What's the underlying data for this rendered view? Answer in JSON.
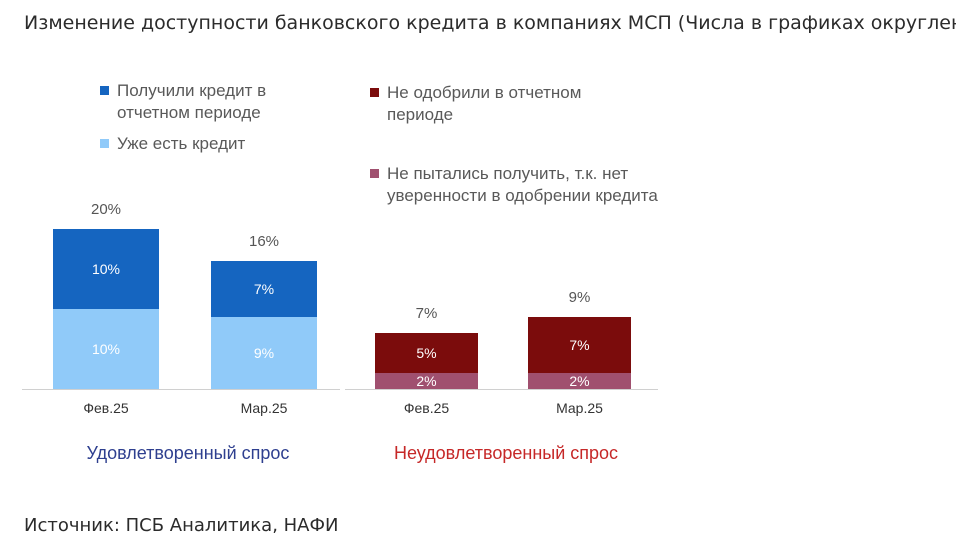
{
  "title": "Изменение доступности банковского кредита в компаниях МСП (Числа в графиках округлены)",
  "source": "Источник: ПСБ Аналитика, НАФИ",
  "colors": {
    "got_credit": "#1565c0",
    "has_credit": "#90caf9",
    "not_approved": "#7b0c0c",
    "not_tried": "#a0506f",
    "group_satisfied": "#2e3f8f",
    "group_unsatisfied": "#c62828"
  },
  "chart_data": {
    "type": "bar",
    "stacked": true,
    "unit": "%",
    "ylim": [
      0,
      20
    ],
    "groups": [
      {
        "label": "Удовлетворенный спрос",
        "categories": [
          "Фев.25",
          "Мар.25"
        ],
        "totals": [
          20,
          16
        ],
        "series": [
          {
            "name": "Уже есть кредит",
            "values": [
              10,
              9
            ],
            "color": "#90caf9"
          },
          {
            "name": "Получили кредит в отчетном периоде",
            "values": [
              10,
              7
            ],
            "color": "#1565c0"
          }
        ]
      },
      {
        "label": "Неудовлетворенный спрос",
        "categories": [
          "Фев.25",
          "Мар.25"
        ],
        "totals": [
          7,
          9
        ],
        "series": [
          {
            "name": "Не пытались получить, т.к. нет уверенности в одобрении кредита",
            "values": [
              2,
              2
            ],
            "color": "#a0506f"
          },
          {
            "name": "Не одобрили в отчетном периоде",
            "values": [
              5,
              7
            ],
            "color": "#7b0c0c"
          }
        ]
      }
    ]
  }
}
